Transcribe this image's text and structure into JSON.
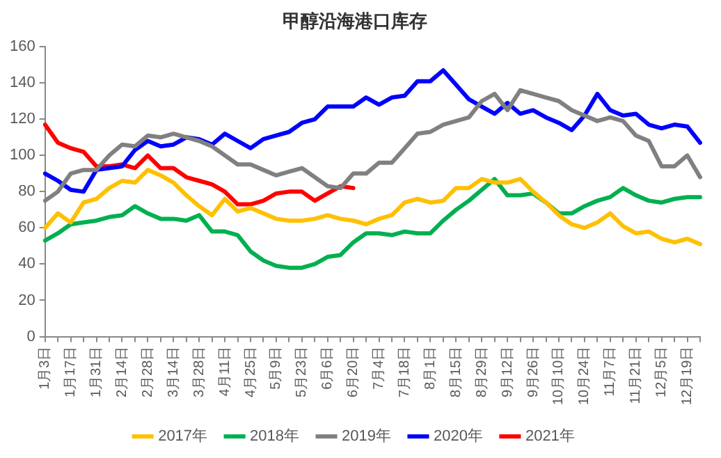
{
  "chart_data": {
    "type": "line",
    "title": "甲醇沿海港口库存",
    "categories": [
      "1月3日",
      null,
      "1月17日",
      null,
      "1月31日",
      null,
      "2月14日",
      null,
      "2月28日",
      null,
      "3月14日",
      null,
      "3月28日",
      null,
      "4月11日",
      null,
      "4月25日",
      null,
      "5月9日",
      null,
      "5月23日",
      null,
      "6月6日",
      null,
      "6月20日",
      null,
      "7月4日",
      null,
      "7月18日",
      null,
      "8月1日",
      null,
      "8月15日",
      null,
      "8月29日",
      null,
      "9月12日",
      null,
      "9月26日",
      null,
      "10月10日",
      null,
      "10月24日",
      null,
      "11月7日",
      null,
      "11月21日",
      null,
      "12月5日",
      null,
      "12月19日",
      null
    ],
    "series": [
      {
        "name": "2017年",
        "color": "#ffc000",
        "values": [
          60,
          68,
          63,
          74,
          76,
          82,
          86,
          85,
          92,
          89,
          85,
          78,
          72,
          67,
          76,
          69,
          71,
          68,
          65,
          64,
          64,
          65,
          67,
          65,
          64,
          62,
          65,
          67,
          74,
          76,
          74,
          75,
          82,
          82,
          87,
          85,
          85,
          87,
          80,
          74,
          67,
          62,
          60,
          63,
          68,
          61,
          57,
          58,
          54,
          52,
          54,
          51
        ]
      },
      {
        "name": "2018年",
        "color": "#00b050",
        "values": [
          53,
          57,
          62,
          63,
          64,
          66,
          67,
          72,
          68,
          65,
          65,
          64,
          67,
          58,
          58,
          56,
          47,
          42,
          39,
          38,
          38,
          40,
          44,
          45,
          52,
          57,
          57,
          56,
          58,
          57,
          57,
          64,
          70,
          75,
          81,
          87,
          78,
          78,
          79,
          74,
          68,
          68,
          72,
          75,
          77,
          82,
          78,
          75,
          74,
          76,
          77,
          77
        ]
      },
      {
        "name": "2019年",
        "color": "#808080",
        "values": [
          75,
          80,
          90,
          92,
          92,
          100,
          106,
          105,
          111,
          110,
          112,
          110,
          108,
          105,
          100,
          95,
          95,
          92,
          89,
          91,
          93,
          88,
          83,
          82,
          90,
          90,
          96,
          96,
          104,
          112,
          113,
          117,
          119,
          121,
          130,
          134,
          125,
          136,
          134,
          132,
          130,
          125,
          122,
          119,
          121,
          119,
          111,
          108,
          94,
          94,
          100,
          88
        ]
      },
      {
        "name": "2020年",
        "color": "#0000ff",
        "values": [
          90,
          86,
          81,
          80,
          92,
          93,
          94,
          103,
          108,
          105,
          106,
          110,
          109,
          106,
          112,
          108,
          104,
          109,
          111,
          113,
          118,
          120,
          127,
          127,
          127,
          132,
          128,
          132,
          133,
          141,
          141,
          147,
          139,
          131,
          127,
          123,
          129,
          123,
          125,
          121,
          118,
          114,
          122,
          134,
          125,
          122,
          123,
          117,
          115,
          117,
          116,
          107
        ]
      },
      {
        "name": "2021年",
        "color": "#ff0000",
        "values": [
          117,
          107,
          104,
          102,
          94,
          94,
          95,
          93,
          100,
          93,
          93,
          88,
          86,
          84,
          80,
          73,
          73,
          75,
          79,
          80,
          80,
          75,
          79,
          83,
          82,
          null,
          null,
          null,
          null,
          null,
          null,
          null,
          null,
          null,
          null,
          null,
          null,
          null,
          null,
          null,
          null,
          null,
          null,
          null,
          null,
          null,
          null,
          null,
          null,
          null,
          null,
          null
        ]
      }
    ],
    "ylim": [
      0,
      160
    ],
    "yticks": [
      0,
      20,
      40,
      60,
      80,
      100,
      120,
      140,
      160
    ],
    "grid": false,
    "legend": "bottom",
    "marker": "none",
    "line_style": "solid"
  }
}
